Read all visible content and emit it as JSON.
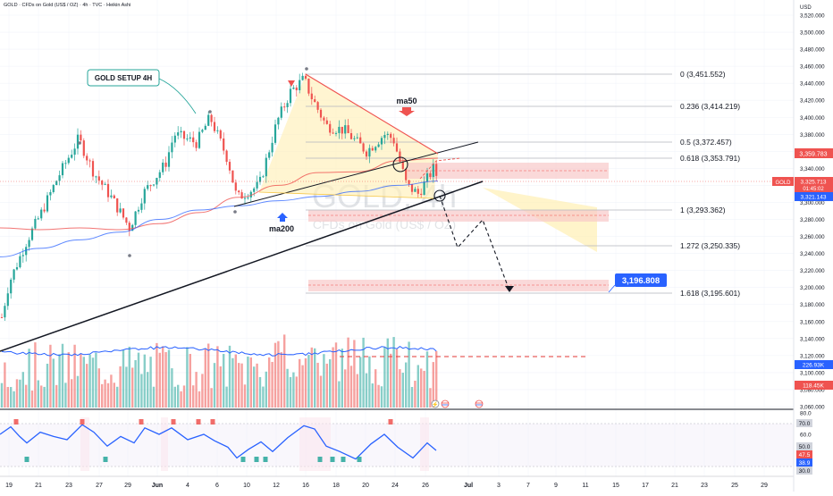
{
  "header": {
    "symbol_line": "GOLD · CFDs on Gold (US$ / OZ) · 4h · TVC · Heikin Ashi"
  },
  "axis": {
    "currency": "USD"
  },
  "watermark": {
    "big": "GOLD, 4h",
    "small": "CFDs on Gold (US$ / OZ)"
  },
  "annotations": {
    "setup": "GOLD SETUP 4H",
    "ma50": "ma50",
    "ma200": "ma200",
    "target": "3,196.808"
  },
  "badges": {
    "last_price": "3,359.783",
    "symbol": "GOLD",
    "current_price": "3,325.713",
    "countdown": "01:45:02",
    "ma_value": "3,321.143",
    "volume_ma": "226.93K",
    "volume": "118.45K",
    "rsi_70": "70.0",
    "rsi_50": "50.0",
    "rsi_main": "47.5",
    "rsi_ma": "38.9",
    "rsi_30": "30.0"
  },
  "colors": {
    "up": "#26a69a",
    "down": "#ef5350",
    "ma50": "#ef5350",
    "ma200": "#2962ff",
    "rsi": "#2962ff",
    "target_badge": "#2962ff",
    "zone": "#f8c9c9",
    "wedge": "#fff0b8"
  },
  "chart_data": [
    {
      "type": "line",
      "title": "GOLD · CFDs on Gold (US$ / OZ) · 4h · TVC · Heikin Ashi",
      "style": "heikin-ashi candles with ma50 / ma200, fibonacci levels and trendlines",
      "y_range": [
        3060,
        3530
      ],
      "y_ticks": [
        3060,
        3080,
        3100,
        3120,
        3140,
        3160,
        3180,
        3200,
        3220,
        3240,
        3260,
        3280,
        3300,
        3320,
        3340,
        3360,
        3380,
        3400,
        3420,
        3440,
        3460,
        3480,
        3500,
        3520
      ],
      "x_ticks": [
        "19",
        "21",
        "23",
        "27",
        "29",
        "Jun",
        "4",
        "6",
        "10",
        "12",
        "16",
        "18",
        "20",
        "24",
        "26",
        "Jul",
        "3",
        "7",
        "9",
        "11",
        "15",
        "17",
        "21",
        "23",
        "25",
        "29"
      ],
      "fib_levels": [
        {
          "label": "0 (3,451.552)",
          "value": 3451.552
        },
        {
          "label": "0.236 (3,414.219)",
          "value": 3414.219
        },
        {
          "label": "0.5 (3,372.457)",
          "value": 3372.457
        },
        {
          "label": "0.618 (3,353.791)",
          "value": 3353.791
        },
        {
          "label": "1 (3,293.362)",
          "value": 3293.362
        },
        {
          "label": "1.272 (3,250.335)",
          "value": 3250.335
        },
        {
          "label": "1.618 (3,195.601)",
          "value": 3195.601
        }
      ],
      "series": [
        {
          "name": "ma50",
          "values": [
            3270,
            3268,
            3270,
            3268,
            3275,
            3288,
            3306,
            3320,
            3335,
            3336,
            3349,
            3352
          ]
        },
        {
          "name": "ma200",
          "values": [
            3236,
            3246,
            3256,
            3265,
            3280,
            3291,
            3296,
            3302,
            3307,
            3313,
            3320,
            3325
          ]
        }
      ]
    },
    {
      "type": "bar",
      "title": "Volume",
      "style": "volume bars with moving average",
      "last_volume": "118.45K",
      "volume_ma": "226.93K"
    },
    {
      "type": "line",
      "title": "RSI",
      "y_ticks": [
        30,
        40,
        50,
        60,
        70,
        80
      ],
      "bands": [
        30,
        70
      ],
      "last_rsi": 47.5,
      "rsi_ma": 38.9
    }
  ]
}
